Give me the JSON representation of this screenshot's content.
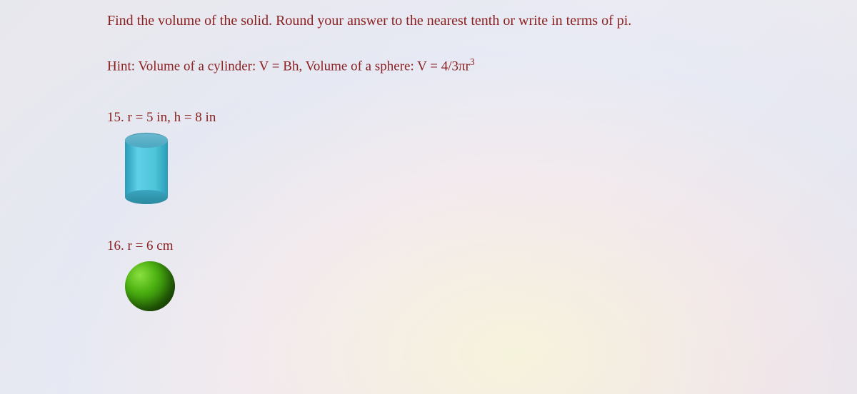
{
  "title": "Find the volume of the solid. Round your answer to the nearest tenth or write in terms of pi.",
  "hint": "Hint: Volume of a cylinder: V = Bh, Volume of a sphere: V = 4/3πr³",
  "problems": {
    "p15": {
      "label": "15. r = 5 in, h = 8 in",
      "shape": "cylinder",
      "r": 5,
      "h": 8,
      "unit": "in",
      "colors": {
        "body_light": "#5fd0e8",
        "body_dark": "#2a9bb8",
        "top": "#6bb8d0"
      }
    },
    "p16": {
      "label": "16. r = 6 cm",
      "shape": "sphere",
      "r": 6,
      "unit": "cm",
      "colors": {
        "highlight": "#8ae040",
        "mid": "#4ab010",
        "shadow": "#184005"
      }
    }
  },
  "style": {
    "text_color": "#8b2020",
    "font_family": "Georgia, Times New Roman, serif",
    "title_fontsize": 20,
    "body_fontsize": 19,
    "background_tint": "#e8e8ec"
  }
}
